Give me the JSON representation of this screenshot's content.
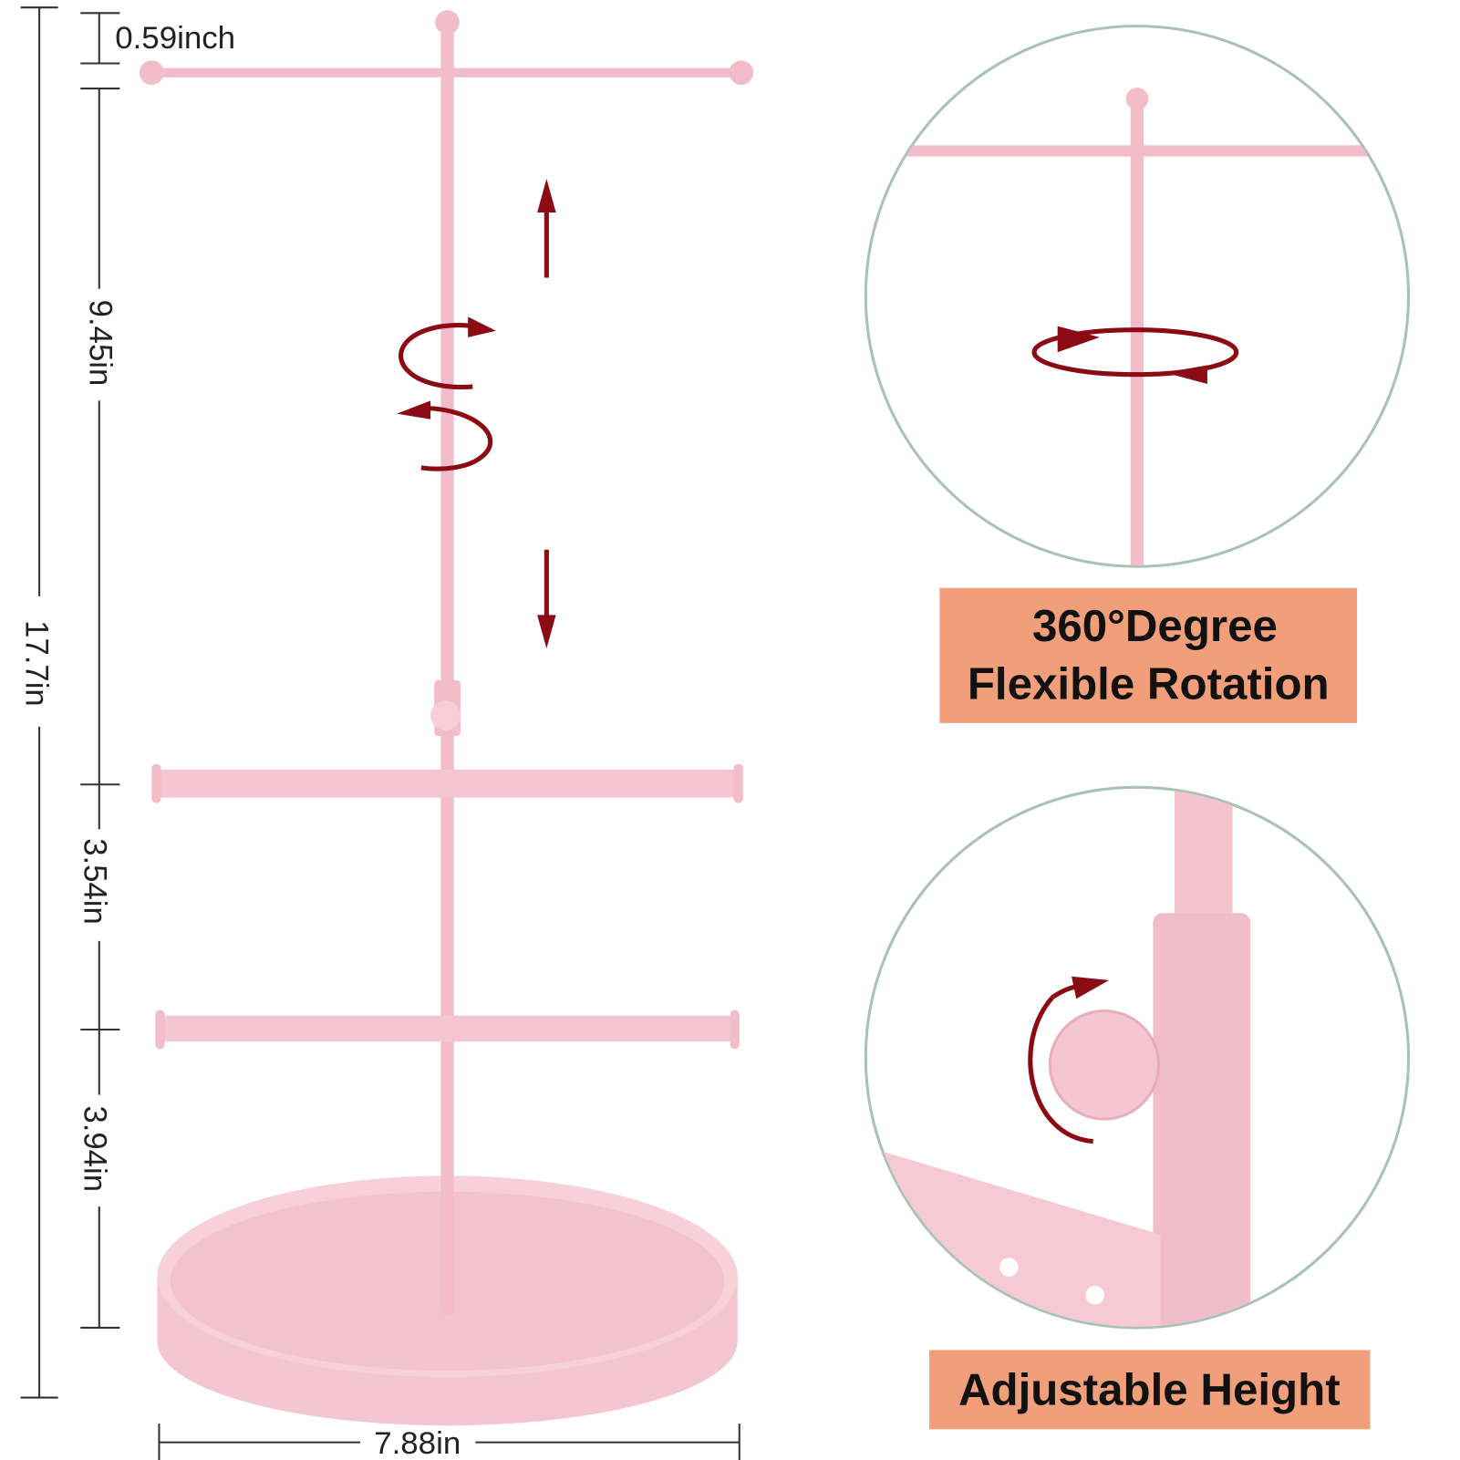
{
  "dimensions": {
    "top": "0.59inch",
    "upper": "9.45in",
    "total": "17.7in",
    "middle": "3.54in",
    "lower": "3.94in",
    "width": "7.88in"
  },
  "features": [
    {
      "lines": [
        "360°Degree",
        "Flexible Rotation"
      ]
    },
    {
      "lines": [
        "Adjustable Height"
      ]
    }
  ]
}
